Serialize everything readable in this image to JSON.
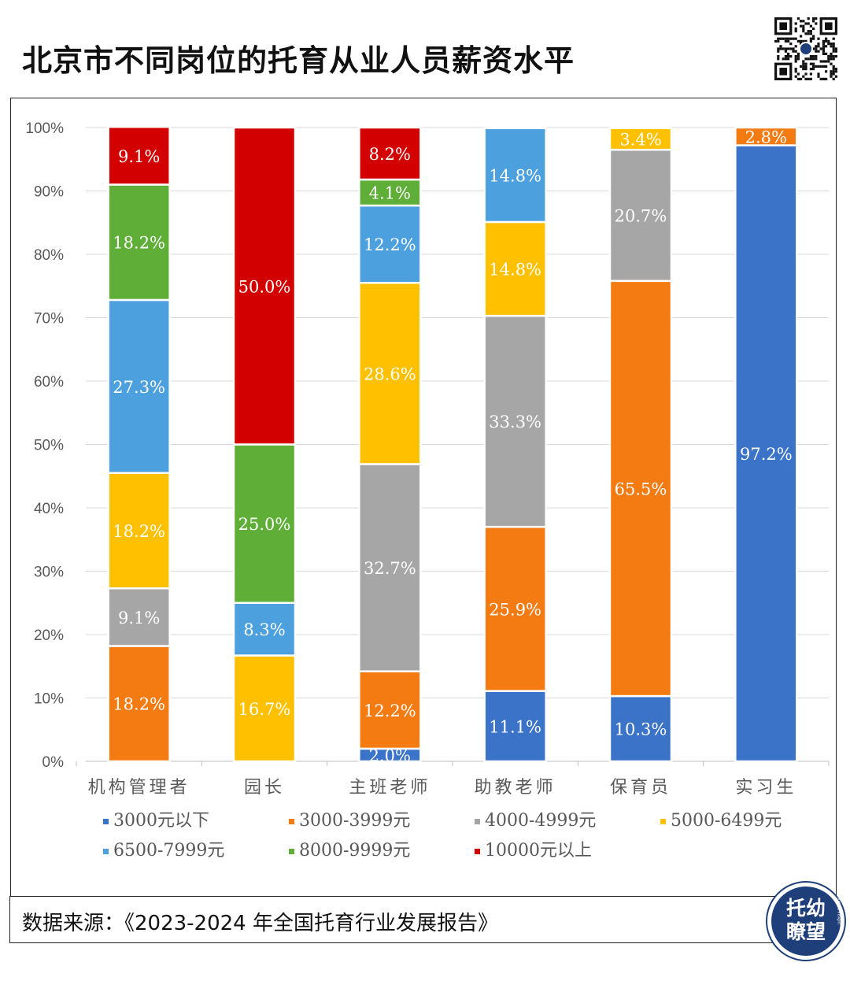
{
  "title": "北京市不同岗位的托育从业人员薪资水平",
  "source": "数据来源：《2023-2024 年全国托育行业发展报告》",
  "logo": {
    "line1": "托幼",
    "line2": "瞭望",
    "sub": "Educare Insight"
  },
  "qr_icon": "qr-code-icon",
  "colors": {
    "3000元以下": "#3A73C8",
    "3000-3999元": "#F47A12",
    "4000-4999元": "#A6A6A6",
    "5000-6499元": "#FFC000",
    "6500-7999元": "#4CA0DD",
    "8000-9999元": "#5EAE38",
    "10000元以上": "#D20000",
    "logo_bg": "#1E3F7A",
    "grid": "#D9D9D9"
  },
  "chart_data": {
    "type": "bar",
    "stacked": true,
    "title": "北京市不同岗位的托育从业人员薪资水平",
    "categories": [
      "机构管理者",
      "园长",
      "主班老师",
      "助教老师",
      "保育员",
      "实习生"
    ],
    "ylim": [
      0,
      100
    ],
    "yticks": [
      "0%",
      "10%",
      "20%",
      "30%",
      "40%",
      "50%",
      "60%",
      "70%",
      "80%",
      "90%",
      "100%"
    ],
    "grid": true,
    "legend_position": "bottom",
    "series": [
      {
        "name": "3000元以下",
        "values": [
          0,
          0,
          2.0,
          11.1,
          10.3,
          97.2
        ],
        "labels": [
          "",
          "",
          "2.0%",
          "11.1%",
          "10.3%",
          "97.2%"
        ]
      },
      {
        "name": "3000-3999元",
        "values": [
          18.2,
          0,
          12.2,
          25.9,
          65.5,
          2.8
        ],
        "labels": [
          "18.2%",
          "",
          "12.2%",
          "25.9%",
          "65.5%",
          "2.8%"
        ]
      },
      {
        "name": "4000-4999元",
        "values": [
          9.1,
          0,
          32.7,
          33.3,
          20.7,
          0
        ],
        "labels": [
          "9.1%",
          "",
          "32.7%",
          "33.3%",
          "20.7%",
          ""
        ]
      },
      {
        "name": "5000-6499元",
        "values": [
          18.2,
          16.7,
          28.6,
          14.8,
          3.4,
          0
        ],
        "labels": [
          "18.2%",
          "16.7%",
          "28.6%",
          "14.8%",
          "3.4%",
          ""
        ]
      },
      {
        "name": "6500-7999元",
        "values": [
          27.3,
          8.3,
          12.2,
          14.8,
          0,
          0
        ],
        "labels": [
          "27.3%",
          "8.3%",
          "12.2%",
          "14.8%",
          "",
          ""
        ]
      },
      {
        "name": "8000-9999元",
        "values": [
          18.2,
          25.0,
          4.1,
          0,
          0,
          0
        ],
        "labels": [
          "18.2%",
          "25.0%",
          "4.1%",
          "",
          "",
          ""
        ]
      },
      {
        "name": "10000元以上",
        "values": [
          9.1,
          50.0,
          8.2,
          0,
          0,
          0
        ],
        "labels": [
          "9.1%",
          "50.0%",
          "8.2%",
          "",
          "",
          ""
        ]
      }
    ]
  }
}
